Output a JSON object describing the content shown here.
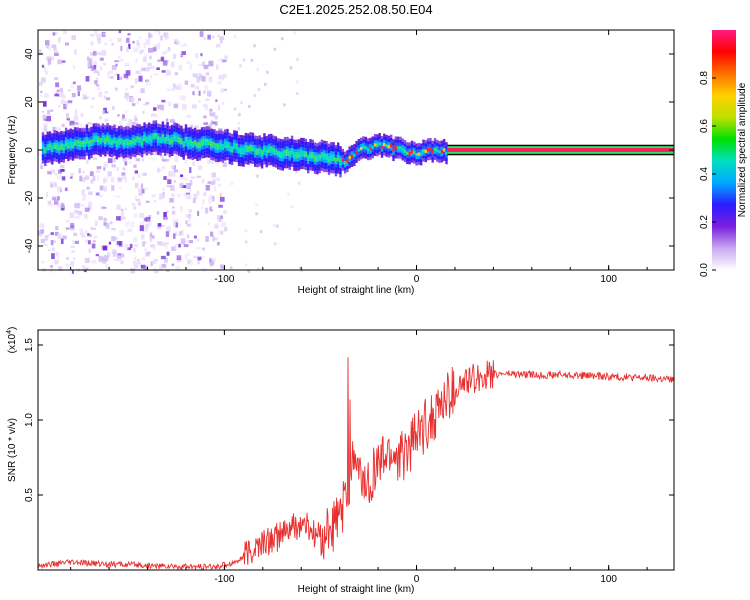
{
  "title": "C2E1.2025.252.08.50.E04",
  "chart_data": [
    {
      "type": "heatmap",
      "name": "spectrogram",
      "xlabel": "Height of straight line (km)",
      "ylabel": "Frequency (Hz)",
      "xlim": [
        -197,
        134
      ],
      "ylim": [
        -50,
        50
      ],
      "xticks": [
        -100,
        0,
        100
      ],
      "yticks": [
        -40,
        -20,
        0,
        20,
        40
      ],
      "colorbar": {
        "label": "Normalized spectral amplitude",
        "range": [
          0,
          1
        ],
        "ticks": [
          "0.0",
          "0.2",
          "0.4",
          "0.6",
          "0.8"
        ],
        "colors": [
          "#ffffff",
          "#c9a8f0",
          "#7a1fe0",
          "#2a1cff",
          "#00a8ff",
          "#00e0c0",
          "#00e000",
          "#c0e000",
          "#ffd000",
          "#ff7000",
          "#ff0000",
          "#ff1a80"
        ]
      },
      "description_series": {
        "center_freq_track_x": [
          -195,
          -180,
          -165,
          -150,
          -135,
          -120,
          -105,
          -90,
          -75,
          -60,
          -45,
          -38,
          -30,
          -20,
          -10,
          0,
          10,
          16,
          40,
          80,
          134
        ],
        "center_freq_track_y": [
          1,
          3,
          5,
          4,
          6,
          4,
          3,
          1,
          0,
          -1,
          -3,
          -4,
          1,
          3,
          1,
          -1,
          1,
          0,
          0,
          0,
          0
        ]
      }
    },
    {
      "type": "line",
      "name": "snr",
      "xlabel": "Height of straight line (km)",
      "ylabel": "SNR (10 * v/v)",
      "y_multiplier": "(x10",
      "y_multiplier_exp": "4",
      "y_multiplier_close": ")",
      "xlim": [
        -197,
        134
      ],
      "ylim": [
        0,
        1.6
      ],
      "xticks": [
        -100,
        0,
        100
      ],
      "yticks": [
        "0.5",
        "1.0",
        "1.5"
      ],
      "color": "#e83030",
      "x": [
        -197,
        -180,
        -160,
        -140,
        -120,
        -105,
        -95,
        -88,
        -80,
        -72,
        -65,
        -58,
        -52,
        -46,
        -40,
        -36,
        -33,
        -30,
        -26,
        -20,
        -14,
        -8,
        -2,
        4,
        10,
        16,
        22,
        30,
        38,
        46,
        60,
        80,
        100,
        120,
        134
      ],
      "y": [
        0.03,
        0.05,
        0.04,
        0.03,
        0.02,
        0.02,
        0.05,
        0.1,
        0.18,
        0.22,
        0.28,
        0.3,
        0.22,
        0.25,
        0.35,
        0.5,
        0.75,
        0.62,
        0.55,
        0.7,
        0.78,
        0.75,
        0.85,
        0.95,
        1.05,
        1.15,
        1.22,
        1.28,
        1.3,
        1.31,
        1.3,
        1.3,
        1.29,
        1.28,
        1.27
      ]
    }
  ]
}
